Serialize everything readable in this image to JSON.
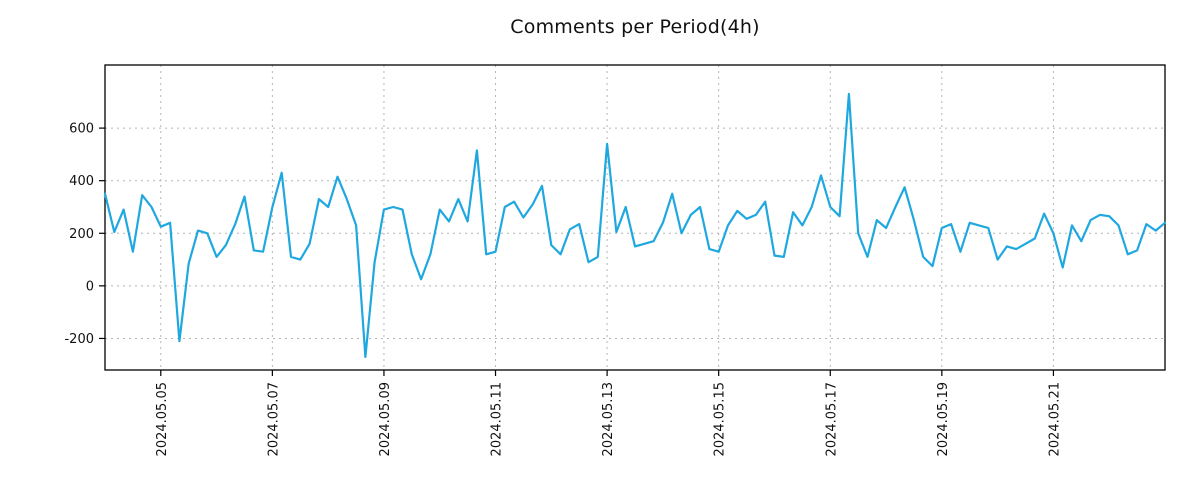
{
  "page": {
    "title": "Comments per Period(4h)"
  },
  "chart_data": {
    "type": "line",
    "title": "Comments per Period(4h)",
    "xlabel": "",
    "ylabel": "",
    "legend": "none",
    "grid": "dotted",
    "x_start": "2024-05-04 00:00",
    "x_interval_hours": 4,
    "ylim": [
      -320,
      840
    ],
    "y_ticks": [
      -200,
      0,
      200,
      400,
      600
    ],
    "x_ticks": [
      {
        "label": "2024.05.05",
        "index": 6
      },
      {
        "label": "2024.05.07",
        "index": 18
      },
      {
        "label": "2024.05.09",
        "index": 30
      },
      {
        "label": "2024.05.11",
        "index": 42
      },
      {
        "label": "2024.05.13",
        "index": 54
      },
      {
        "label": "2024.05.15",
        "index": 66
      },
      {
        "label": "2024.05.17",
        "index": 78
      },
      {
        "label": "2024.05.19",
        "index": 90
      },
      {
        "label": "2024.05.21",
        "index": 102
      }
    ],
    "series": [
      {
        "name": "comments",
        "color": "#1fa8e0",
        "values": [
          350,
          205,
          290,
          130,
          345,
          300,
          225,
          240,
          -210,
          85,
          210,
          200,
          110,
          155,
          235,
          340,
          135,
          130,
          300,
          430,
          110,
          100,
          160,
          330,
          300,
          415,
          330,
          230,
          -270,
          90,
          290,
          300,
          290,
          120,
          25,
          120,
          290,
          245,
          330,
          245,
          515,
          120,
          130,
          300,
          320,
          260,
          310,
          380,
          155,
          120,
          215,
          235,
          90,
          110,
          540,
          205,
          300,
          150,
          160,
          170,
          240,
          350,
          200,
          270,
          300,
          140,
          130,
          230,
          285,
          255,
          270,
          320,
          115,
          110,
          280,
          230,
          300,
          420,
          300,
          265,
          730,
          200,
          110,
          250,
          220,
          300,
          375,
          250,
          110,
          75,
          220,
          235,
          130,
          240,
          230,
          220,
          100,
          150,
          140,
          160,
          180,
          275,
          200,
          70,
          230,
          170,
          250,
          270,
          265,
          230,
          120,
          135,
          235,
          210,
          240
        ]
      }
    ]
  },
  "style": {
    "line_color": "#1fa8e0",
    "grid_color": "#b5b5b5",
    "axis_color": "#000000",
    "tick_label_color": "#111111",
    "background": "#ffffff"
  }
}
